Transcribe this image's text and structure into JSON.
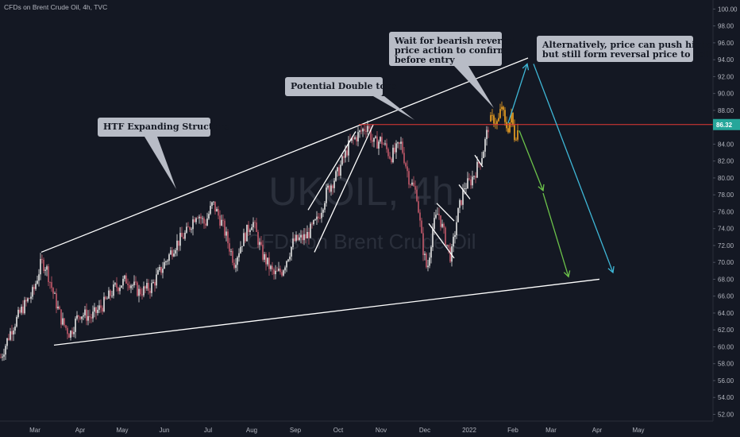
{
  "header": {
    "symbol_title": "CFDs on Brent Crude Oil, 4h, TVC"
  },
  "watermark": {
    "ticker": "UKOIL, 4h",
    "name": "CFDs on Brent Crude Oil"
  },
  "colors": {
    "background": "#141823",
    "candle_up": "#e6e6e6",
    "candle_down": "#c45a6a",
    "candle_recent": "#f5a623",
    "trendline": "#ffffff",
    "price_line": "#e53935",
    "price_label_bg": "#26a69a",
    "arrow_blue": "#3fb8d8",
    "arrow_green": "#6cc24a",
    "callout_bg": "#b8bcc6"
  },
  "chart_data": {
    "type": "candlestick",
    "title": "CFDs on Brent Crude Oil, 4h, TVC",
    "y_axis": {
      "ticks": [
        52,
        54,
        56,
        58,
        60,
        62,
        64,
        66,
        68,
        70,
        72,
        74,
        76,
        78,
        80,
        82,
        84,
        86,
        88,
        90,
        92,
        94,
        96,
        98,
        100
      ],
      "range": [
        51.2,
        100.6
      ]
    },
    "x_axis": {
      "ticks": [
        "Mar",
        "Apr",
        "May",
        "Jun",
        "Jul",
        "Aug",
        "Sep",
        "Oct",
        "Nov",
        "Dec",
        "2022",
        "Feb",
        "Mar",
        "Apr",
        "May"
      ]
    },
    "current_price": {
      "label": "86.32",
      "value": 86.32
    },
    "price_path": [
      {
        "t": 0,
        "p": 58.5
      },
      {
        "t": 14,
        "p": 62.0
      },
      {
        "t": 28,
        "p": 64.5
      },
      {
        "t": 42,
        "p": 66.5
      },
      {
        "t": 52,
        "p": 70.0
      },
      {
        "t": 58,
        "p": 69.5
      },
      {
        "t": 68,
        "p": 66.0
      },
      {
        "t": 78,
        "p": 63.0
      },
      {
        "t": 88,
        "p": 61.5
      },
      {
        "t": 100,
        "p": 64.0
      },
      {
        "t": 115,
        "p": 63.5
      },
      {
        "t": 130,
        "p": 65.0
      },
      {
        "t": 145,
        "p": 67.0
      },
      {
        "t": 160,
        "p": 68.0
      },
      {
        "t": 175,
        "p": 66.5
      },
      {
        "t": 190,
        "p": 67.0
      },
      {
        "t": 205,
        "p": 69.5
      },
      {
        "t": 220,
        "p": 72.0
      },
      {
        "t": 235,
        "p": 73.5
      },
      {
        "t": 248,
        "p": 76.0
      },
      {
        "t": 258,
        "p": 74.5
      },
      {
        "t": 268,
        "p": 77.0
      },
      {
        "t": 280,
        "p": 74.5
      },
      {
        "t": 295,
        "p": 70.0
      },
      {
        "t": 305,
        "p": 72.5
      },
      {
        "t": 318,
        "p": 75.0
      },
      {
        "t": 330,
        "p": 71.0
      },
      {
        "t": 345,
        "p": 68.5
      },
      {
        "t": 355,
        "p": 69.0
      },
      {
        "t": 370,
        "p": 72.5
      },
      {
        "t": 385,
        "p": 73.0
      },
      {
        "t": 400,
        "p": 75.0
      },
      {
        "t": 412,
        "p": 78.5
      },
      {
        "t": 425,
        "p": 80.5
      },
      {
        "t": 440,
        "p": 84.0
      },
      {
        "t": 455,
        "p": 85.5
      },
      {
        "t": 463,
        "p": 86.3
      },
      {
        "t": 470,
        "p": 84.0
      },
      {
        "t": 480,
        "p": 84.5
      },
      {
        "t": 492,
        "p": 82.5
      },
      {
        "t": 505,
        "p": 84.0
      },
      {
        "t": 515,
        "p": 80.0
      },
      {
        "t": 525,
        "p": 78.0
      },
      {
        "t": 532,
        "p": 72.0
      },
      {
        "t": 538,
        "p": 69.0
      },
      {
        "t": 545,
        "p": 74.0
      },
      {
        "t": 552,
        "p": 76.0
      },
      {
        "t": 560,
        "p": 73.0
      },
      {
        "t": 568,
        "p": 70.5
      },
      {
        "t": 576,
        "p": 75.5
      },
      {
        "t": 585,
        "p": 79.0
      },
      {
        "t": 592,
        "p": 79.5
      },
      {
        "t": 600,
        "p": 81.0
      },
      {
        "t": 608,
        "p": 83.0
      },
      {
        "t": 616,
        "p": 86.5
      }
    ],
    "recent_path": [
      {
        "t": 616,
        "p": 86.5
      },
      {
        "t": 622,
        "p": 87.0
      },
      {
        "t": 627,
        "p": 86.4
      },
      {
        "t": 632,
        "p": 88.6
      },
      {
        "t": 636,
        "p": 86.2
      },
      {
        "t": 640,
        "p": 86.0
      },
      {
        "t": 644,
        "p": 87.2
      },
      {
        "t": 648,
        "p": 85.0
      },
      {
        "t": 652,
        "p": 85.6
      }
    ],
    "trendlines": [
      {
        "name": "upper-structure",
        "points": [
          {
            "t": 52,
            "p": 71.2
          },
          {
            "t": 665,
            "p": 94.2
          }
        ]
      },
      {
        "name": "lower-structure",
        "points": [
          {
            "t": 68,
            "p": 60.2
          },
          {
            "t": 755,
            "p": 68.0
          }
        ]
      },
      {
        "name": "channel-left",
        "points": [
          {
            "t": 388,
            "p": 76.2
          },
          {
            "t": 448,
            "p": 85.5
          }
        ]
      },
      {
        "name": "channel-right",
        "points": [
          {
            "t": 396,
            "p": 71.2
          },
          {
            "t": 470,
            "p": 86.3
          }
        ]
      },
      {
        "name": "flag-1",
        "points": [
          {
            "t": 540,
            "p": 74.6
          },
          {
            "t": 572,
            "p": 70.5
          }
        ]
      },
      {
        "name": "flag-2",
        "points": [
          {
            "t": 550,
            "p": 77.0
          },
          {
            "t": 572,
            "p": 74.9
          }
        ]
      },
      {
        "name": "flag-3",
        "points": [
          {
            "t": 578,
            "p": 79.2
          },
          {
            "t": 592,
            "p": 77.5
          }
        ]
      },
      {
        "name": "flag-4",
        "points": [
          {
            "t": 598,
            "p": 82.7
          },
          {
            "t": 608,
            "p": 81.3
          }
        ]
      }
    ],
    "price_line_span": [
      {
        "t": 452
      },
      {
        "t": 900
      }
    ],
    "arrows": [
      {
        "name": "blue-up",
        "color": "arrow_blue",
        "from": {
          "t": 640,
          "p": 86.5
        },
        "to": {
          "t": 664,
          "p": 93.5
        }
      },
      {
        "name": "blue-down",
        "color": "arrow_blue",
        "from": {
          "t": 672,
          "p": 93.5
        },
        "to": {
          "t": 772,
          "p": 68.8
        }
      },
      {
        "name": "green-down-1",
        "color": "arrow_green",
        "from": {
          "t": 654,
          "p": 85.6
        },
        "to": {
          "t": 684,
          "p": 78.5
        }
      },
      {
        "name": "green-down-2",
        "color": "arrow_green",
        "from": {
          "t": 684,
          "p": 78.2
        },
        "to": {
          "t": 716,
          "p": 68.3
        }
      }
    ],
    "callouts": [
      {
        "name": "htf-expanding",
        "lines": [
          "HTF Expanding Structure"
        ]
      },
      {
        "name": "double-tops",
        "lines": [
          "Potential Double tops"
        ]
      },
      {
        "name": "wait-reversal",
        "lines": [
          "Wait for bearish reversal",
          "price action to confirm",
          "before entry"
        ]
      },
      {
        "name": "alternatively",
        "lines": [
          "Alternatively, price can push higher",
          "but still form reversal price to sell"
        ]
      }
    ]
  }
}
